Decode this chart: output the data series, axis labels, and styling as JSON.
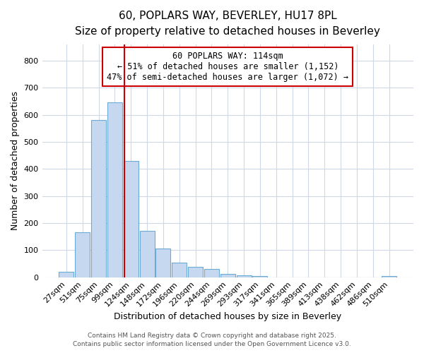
{
  "title_line1": "60, POPLARS WAY, BEVERLEY, HU17 8PL",
  "title_line2": "Size of property relative to detached houses in Beverley",
  "xlabel": "Distribution of detached houses by size in Beverley",
  "ylabel": "Number of detached properties",
  "bin_labels": [
    "27sqm",
    "51sqm",
    "75sqm",
    "99sqm",
    "124sqm",
    "148sqm",
    "172sqm",
    "196sqm",
    "220sqm",
    "244sqm",
    "269sqm",
    "293sqm",
    "317sqm",
    "341sqm",
    "365sqm",
    "389sqm",
    "413sqm",
    "438sqm",
    "462sqm",
    "486sqm",
    "510sqm"
  ],
  "bar_values": [
    20,
    165,
    580,
    645,
    430,
    170,
    105,
    55,
    38,
    30,
    13,
    8,
    5,
    0,
    0,
    0,
    0,
    0,
    0,
    0,
    5
  ],
  "bar_color": "#c5d8f0",
  "bar_edgecolor": "#6aaad4",
  "bar_linewidth": 0.8,
  "vline_color": "#cc0000",
  "vline_linewidth": 1.5,
  "vline_pos": 3.575,
  "annotation_text": "60 POPLARS WAY: 114sqm\n← 51% of detached houses are smaller (1,152)\n47% of semi-detached houses are larger (1,072) →",
  "ylim": [
    0,
    860
  ],
  "yticks": [
    0,
    100,
    200,
    300,
    400,
    500,
    600,
    700,
    800
  ],
  "background_color": "#ffffff",
  "plot_bg_color": "#ffffff",
  "grid_color": "#d0d8e8",
  "footer_line1": "Contains HM Land Registry data © Crown copyright and database right 2025.",
  "footer_line2": "Contains public sector information licensed under the Open Government Licence v3.0.",
  "title_fontsize": 11,
  "subtitle_fontsize": 10,
  "axis_label_fontsize": 9,
  "tick_fontsize": 8,
  "annotation_fontsize": 8.5,
  "footer_fontsize": 6.5
}
